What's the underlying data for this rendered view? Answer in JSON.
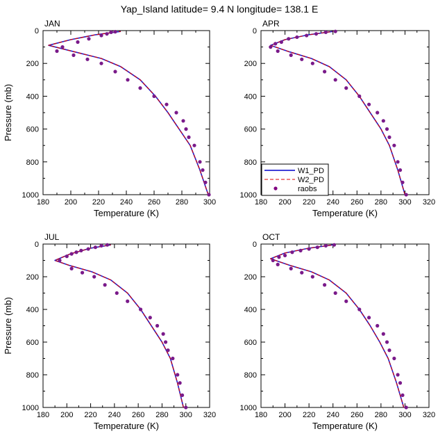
{
  "title": "Yap_Island  latitude= 9.4 N longitude= 138.1 E",
  "legend": {
    "placement": "inside-lower-left of APR panel",
    "entries": [
      {
        "label": "W1_PD",
        "style": "solid",
        "color": "#0000cc"
      },
      {
        "label": "W2_PD",
        "style": "dashed",
        "color": "#dd0000"
      },
      {
        "label": "raobs",
        "style": "marker",
        "color": "#800080"
      }
    ]
  },
  "colors": {
    "w1": "#1f1fcc",
    "w2": "#dd0000",
    "raobs": "#7a1a8a"
  },
  "chart_data": [
    {
      "type": "line",
      "panel": "JAN",
      "xlabel": "Temperature (K)",
      "ylabel": "Pressure (mb)",
      "xlim": [
        180,
        300
      ],
      "ylim": [
        1000,
        0
      ],
      "xticks": [
        180,
        190,
        200,
        210,
        220,
        230,
        240,
        250,
        260,
        270,
        280,
        290,
        300
      ],
      "xticklabels": [
        "180",
        "200",
        "220",
        "240",
        "260",
        "280",
        "300"
      ],
      "yticklabels": [
        "0",
        "200",
        "400",
        "600",
        "800",
        "1000"
      ],
      "series": [
        {
          "name": "W1_PD",
          "temperature": [
            299,
            293,
            286,
            278,
            270,
            261,
            250,
            236,
            222,
            203,
            184,
            200,
            218,
            236
          ],
          "pressure": [
            1000,
            850,
            700,
            600,
            500,
            400,
            300,
            220,
            170,
            130,
            90,
            55,
            25,
            5
          ]
        },
        {
          "name": "W2_PD",
          "temperature": [
            299,
            293,
            286,
            278,
            270,
            261,
            250,
            236,
            222,
            203,
            184,
            200,
            218,
            236
          ],
          "pressure": [
            1000,
            850,
            700,
            600,
            500,
            400,
            300,
            220,
            170,
            130,
            90,
            55,
            25,
            5
          ]
        },
        {
          "name": "raobs",
          "temperature": [
            299.5,
            297,
            295,
            293,
            289,
            285,
            283,
            281,
            276,
            269,
            260,
            250,
            241,
            232,
            222,
            212,
            202,
            190,
            194,
            205,
            213,
            222,
            226,
            229,
            232
          ],
          "pressure": [
            1000,
            925,
            850,
            800,
            700,
            650,
            600,
            550,
            500,
            450,
            400,
            350,
            300,
            250,
            200,
            175,
            150,
            125,
            100,
            70,
            50,
            30,
            20,
            10,
            7
          ]
        }
      ]
    },
    {
      "type": "line",
      "panel": "APR",
      "xlabel": "Temperature (K)",
      "ylabel": "",
      "xlim": [
        180,
        320
      ],
      "ylim": [
        1000,
        0
      ],
      "xticks": [
        180,
        190,
        200,
        210,
        220,
        230,
        240,
        250,
        260,
        270,
        280,
        290,
        300,
        310,
        320
      ],
      "xticklabels": [
        "180",
        "200",
        "220",
        "240",
        "260",
        "280",
        "300",
        "320"
      ],
      "yticklabels": [
        "0",
        "200",
        "400",
        "600",
        "800",
        "1000"
      ],
      "series": [
        {
          "name": "W1_PD",
          "temperature": [
            300,
            294,
            287,
            280,
            271,
            262,
            251,
            237,
            222,
            204,
            188,
            200,
            220,
            240
          ],
          "pressure": [
            1000,
            850,
            700,
            600,
            500,
            400,
            300,
            220,
            170,
            130,
            90,
            55,
            25,
            5
          ]
        },
        {
          "name": "W2_PD",
          "temperature": [
            300,
            294,
            287,
            280,
            271,
            262,
            251,
            237,
            222,
            204,
            188,
            200,
            220,
            240
          ],
          "pressure": [
            1000,
            850,
            700,
            600,
            500,
            400,
            300,
            220,
            170,
            130,
            90,
            55,
            25,
            5
          ]
        },
        {
          "name": "raobs",
          "temperature": [
            301,
            298,
            296,
            294,
            291,
            287,
            285,
            282,
            277,
            270,
            262,
            251,
            242,
            233,
            223,
            214,
            205,
            194,
            188,
            192,
            197,
            203,
            210,
            218,
            226,
            234,
            242
          ],
          "pressure": [
            1000,
            925,
            850,
            800,
            700,
            650,
            600,
            550,
            500,
            450,
            400,
            350,
            300,
            250,
            200,
            175,
            150,
            125,
            100,
            80,
            70,
            50,
            40,
            30,
            20,
            10,
            5
          ]
        }
      ]
    },
    {
      "type": "line",
      "panel": "JUL",
      "xlabel": "Temperature (K)",
      "ylabel": "Pressure (mb)",
      "xlim": [
        180,
        320
      ],
      "ylim": [
        1000,
        0
      ],
      "xticks": [
        180,
        190,
        200,
        210,
        220,
        230,
        240,
        250,
        260,
        270,
        280,
        290,
        300,
        310,
        320
      ],
      "xticklabels": [
        "180",
        "200",
        "220",
        "240",
        "260",
        "280",
        "300",
        "320"
      ],
      "yticklabels": [
        "0",
        "200",
        "400",
        "600",
        "800",
        "1000"
      ],
      "series": [
        {
          "name": "W1_PD",
          "temperature": [
            298,
            293,
            287,
            280,
            271,
            262,
            251,
            237,
            221,
            202,
            190,
            203,
            220,
            237
          ],
          "pressure": [
            1000,
            850,
            700,
            600,
            500,
            400,
            300,
            220,
            170,
            130,
            100,
            60,
            25,
            5
          ]
        },
        {
          "name": "W2_PD",
          "temperature": [
            298,
            293,
            287,
            280,
            271,
            262,
            251,
            237,
            221,
            202,
            190,
            203,
            220,
            237
          ],
          "pressure": [
            1000,
            850,
            700,
            600,
            500,
            400,
            300,
            220,
            170,
            130,
            100,
            60,
            25,
            5
          ]
        },
        {
          "name": "raobs",
          "temperature": [
            300,
            297,
            295,
            293,
            289,
            285,
            283,
            281,
            276,
            270,
            262,
            251,
            242,
            232,
            223,
            213,
            204,
            194,
            200,
            204,
            208,
            212,
            218,
            224,
            229,
            234
          ],
          "pressure": [
            1000,
            925,
            850,
            800,
            700,
            650,
            600,
            550,
            500,
            450,
            400,
            350,
            300,
            250,
            200,
            175,
            150,
            100,
            75,
            60,
            50,
            40,
            30,
            20,
            10,
            5
          ]
        }
      ]
    },
    {
      "type": "line",
      "panel": "OCT",
      "xlabel": "Temperature (K)",
      "ylabel": "",
      "xlim": [
        180,
        320
      ],
      "ylim": [
        1000,
        0
      ],
      "xticks": [
        180,
        190,
        200,
        210,
        220,
        230,
        240,
        250,
        260,
        270,
        280,
        290,
        300,
        310,
        320
      ],
      "xticklabels": [
        "180",
        "200",
        "220",
        "240",
        "260",
        "280",
        "300",
        "320"
      ],
      "yticklabels": [
        "0",
        "200",
        "400",
        "600",
        "800",
        "1000"
      ],
      "series": [
        {
          "name": "W1_PD",
          "temperature": [
            299,
            293,
            286,
            279,
            271,
            262,
            251,
            237,
            222,
            204,
            188,
            200,
            220,
            240
          ],
          "pressure": [
            1000,
            850,
            700,
            600,
            500,
            400,
            300,
            220,
            170,
            130,
            90,
            55,
            25,
            5
          ]
        },
        {
          "name": "W2_PD",
          "temperature": [
            299,
            293,
            286,
            279,
            271,
            262,
            251,
            237,
            222,
            204,
            188,
            200,
            220,
            240
          ],
          "pressure": [
            1000,
            850,
            700,
            600,
            500,
            400,
            300,
            220,
            170,
            130,
            90,
            55,
            25,
            5
          ]
        },
        {
          "name": "raobs",
          "temperature": [
            301,
            298,
            296,
            294,
            291,
            287,
            285,
            282,
            277,
            270,
            262,
            251,
            242,
            233,
            223,
            214,
            205,
            194,
            190,
            195,
            200,
            206,
            213,
            220,
            227,
            234,
            241
          ],
          "pressure": [
            1000,
            925,
            850,
            800,
            700,
            650,
            600,
            550,
            500,
            450,
            400,
            350,
            300,
            250,
            200,
            175,
            150,
            125,
            100,
            80,
            70,
            50,
            40,
            30,
            20,
            10,
            5
          ]
        }
      ]
    }
  ]
}
